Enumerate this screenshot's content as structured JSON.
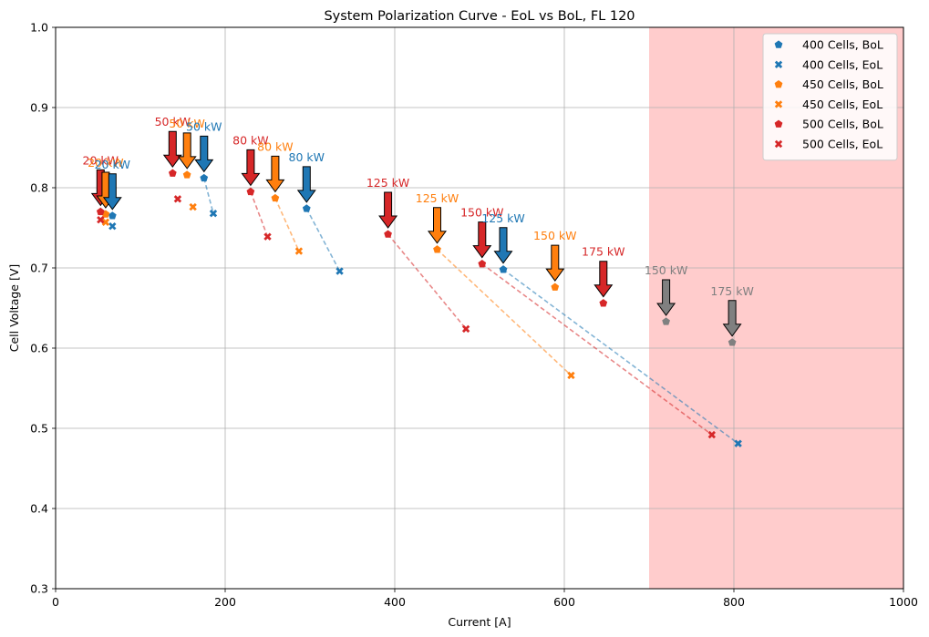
{
  "chart_data": {
    "type": "scatter",
    "title": "System Polarization Curve - EoL vs BoL, FL 120",
    "xlabel": "Current [A]",
    "ylabel": "Cell Voltage [V]",
    "xlim": [
      0,
      1000
    ],
    "ylim": [
      0.3,
      1.0
    ],
    "xticks": [
      0,
      200,
      400,
      600,
      800,
      1000
    ],
    "yticks": [
      0.3,
      0.4,
      0.5,
      0.6,
      0.7,
      0.8,
      0.9,
      1.0
    ],
    "grid": true,
    "legend_position": "top-right",
    "shaded_region": {
      "x_from": 700,
      "x_to": 1000,
      "color": "#ffcccc"
    },
    "colors": {
      "c400": "#1f77b4",
      "c450": "#ff7f0e",
      "c500": "#d62728",
      "gray": "#808080"
    },
    "series": [
      {
        "name": "400 Cells, BoL",
        "marker": "pentagon",
        "color": "#1f77b4",
        "x": [
          67,
          175,
          296,
          528
        ],
        "y": [
          0.765,
          0.812,
          0.774,
          0.698
        ]
      },
      {
        "name": "400 Cells, EoL",
        "marker": "x",
        "color": "#1f77b4",
        "x": [
          67,
          186,
          335,
          805
        ],
        "y": [
          0.752,
          0.768,
          0.696,
          0.481
        ]
      },
      {
        "name": "450 Cells, BoL",
        "marker": "pentagon",
        "color": "#ff7f0e",
        "x": [
          59,
          155,
          259,
          450,
          589
        ],
        "y": [
          0.767,
          0.816,
          0.787,
          0.723,
          0.676
        ]
      },
      {
        "name": "450 Cells, EoL",
        "marker": "x",
        "color": "#ff7f0e",
        "x": [
          59,
          162,
          287,
          608
        ],
        "y": [
          0.757,
          0.776,
          0.721,
          0.566
        ]
      },
      {
        "name": "500 Cells, BoL",
        "marker": "pentagon",
        "color": "#d62728",
        "x": [
          53,
          138,
          230,
          392,
          503,
          646
        ],
        "y": [
          0.77,
          0.818,
          0.795,
          0.742,
          0.705,
          0.656
        ]
      },
      {
        "name": "500 Cells, EoL",
        "marker": "x",
        "color": "#d62728",
        "x": [
          53,
          144,
          250,
          484,
          774
        ],
        "y": [
          0.76,
          0.786,
          0.739,
          0.624,
          0.492
        ]
      },
      {
        "name": "",
        "marker": "pentagon",
        "color": "#808080",
        "x": [
          720,
          798
        ],
        "y": [
          0.633,
          0.607
        ]
      }
    ],
    "degradation_lines": [
      {
        "color": "#1f77b4",
        "from": [
          175,
          0.812
        ],
        "to": [
          186,
          0.768
        ]
      },
      {
        "color": "#1f77b4",
        "from": [
          296,
          0.774
        ],
        "to": [
          335,
          0.696
        ]
      },
      {
        "color": "#1f77b4",
        "from": [
          528,
          0.698
        ],
        "to": [
          805,
          0.481
        ]
      },
      {
        "color": "#ff7f0e",
        "from": [
          259,
          0.787
        ],
        "to": [
          287,
          0.721
        ]
      },
      {
        "color": "#ff7f0e",
        "from": [
          450,
          0.723
        ],
        "to": [
          608,
          0.566
        ]
      },
      {
        "color": "#d62728",
        "from": [
          230,
          0.795
        ],
        "to": [
          250,
          0.739
        ]
      },
      {
        "color": "#d62728",
        "from": [
          392,
          0.742
        ],
        "to": [
          484,
          0.624
        ]
      },
      {
        "color": "#d62728",
        "from": [
          503,
          0.705
        ],
        "to": [
          774,
          0.492
        ]
      }
    ],
    "annotations": [
      {
        "text": "20 kW",
        "color": "#d62728",
        "x": 53,
        "y": 0.77
      },
      {
        "text": "20 kW",
        "color": "#ff7f0e",
        "x": 59,
        "y": 0.767
      },
      {
        "text": "20 kW",
        "color": "#1f77b4",
        "x": 67,
        "y": 0.765
      },
      {
        "text": "50 kW",
        "color": "#d62728",
        "x": 138,
        "y": 0.818
      },
      {
        "text": "50 kW",
        "color": "#ff7f0e",
        "x": 155,
        "y": 0.816
      },
      {
        "text": "50 kW",
        "color": "#1f77b4",
        "x": 175,
        "y": 0.812
      },
      {
        "text": "80 kW",
        "color": "#d62728",
        "x": 230,
        "y": 0.795
      },
      {
        "text": "80 kW",
        "color": "#ff7f0e",
        "x": 259,
        "y": 0.787
      },
      {
        "text": "80 kW",
        "color": "#1f77b4",
        "x": 296,
        "y": 0.774
      },
      {
        "text": "125 kW",
        "color": "#d62728",
        "x": 392,
        "y": 0.742
      },
      {
        "text": "125 kW",
        "color": "#ff7f0e",
        "x": 450,
        "y": 0.723
      },
      {
        "text": "150 kW",
        "color": "#d62728",
        "x": 503,
        "y": 0.705
      },
      {
        "text": "125 kW",
        "color": "#1f77b4",
        "x": 528,
        "y": 0.698
      },
      {
        "text": "150 kW",
        "color": "#ff7f0e",
        "x": 589,
        "y": 0.676
      },
      {
        "text": "175 kW",
        "color": "#d62728",
        "x": 646,
        "y": 0.656
      },
      {
        "text": "150 kW",
        "color": "#808080",
        "x": 720,
        "y": 0.633
      },
      {
        "text": "175 kW",
        "color": "#808080",
        "x": 798,
        "y": 0.607
      }
    ]
  }
}
